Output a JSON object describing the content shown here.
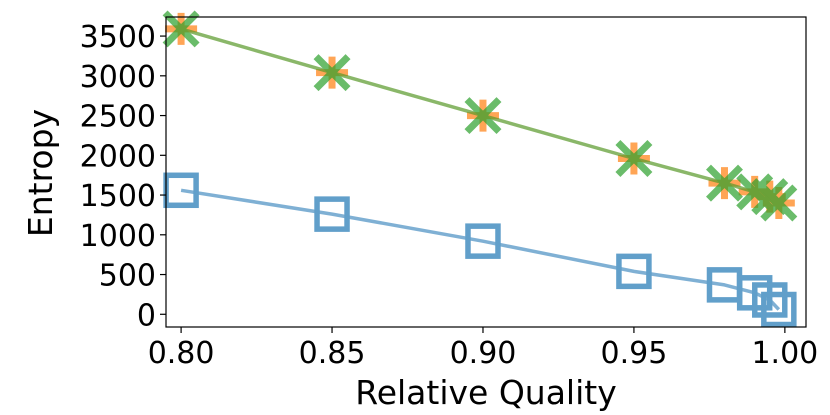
{
  "chart_data": {
    "type": "line",
    "title": "",
    "xlabel": "Relative Quality",
    "ylabel": "Entropy",
    "xlim": [
      0.795,
      1.007
    ],
    "ylim": [
      -160,
      3740
    ],
    "xticks": [
      0.8,
      0.85,
      0.9,
      0.95,
      1.0
    ],
    "xtick_labels": [
      "0.80",
      "0.85",
      "0.90",
      "0.95",
      "1.00"
    ],
    "yticks": [
      0,
      500,
      1000,
      1500,
      2000,
      2500,
      3000,
      3500
    ],
    "ytick_labels": [
      "0",
      "500",
      "1000",
      "1500",
      "2000",
      "2500",
      "3000",
      "3500"
    ],
    "x": [
      0.8,
      0.85,
      0.9,
      0.95,
      0.98,
      0.99,
      0.995,
      0.998
    ],
    "series": [
      {
        "name": "series-orange-plus",
        "marker": "plus",
        "color": "#ff7f0e",
        "show_line": false,
        "values": [
          3590,
          3040,
          2500,
          1960,
          1650,
          1540,
          1480,
          1400
        ]
      },
      {
        "name": "series-green-x",
        "marker": "x",
        "color": "#2ca02c",
        "show_line": true,
        "line_color": "#5a9a2a",
        "values": [
          3590,
          3040,
          2500,
          1960,
          1650,
          1540,
          1480,
          1400
        ]
      },
      {
        "name": "series-blue-square",
        "marker": "square",
        "color": "#1f77b4",
        "show_line": true,
        "line_color": "#4a90c2",
        "values": [
          1560,
          1260,
          920,
          540,
          370,
          270,
          180,
          60
        ]
      }
    ]
  }
}
